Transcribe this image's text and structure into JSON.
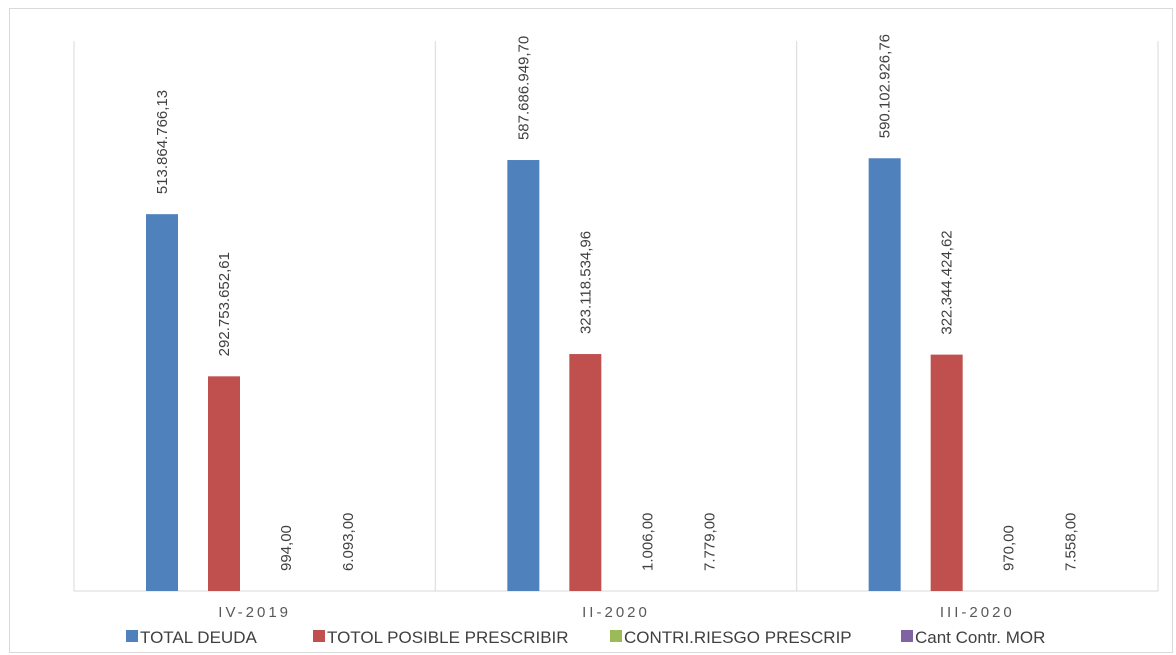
{
  "chart_data": {
    "type": "bar",
    "categories": [
      "IV-2019",
      "II-2020",
      "III-2020"
    ],
    "series": [
      {
        "name": "TOTAL DEUDA",
        "color": "#4f81bd",
        "values": [
          513864766.13,
          587686949.7,
          590102926.76
        ],
        "labels": [
          "513.864.766,13",
          "587.686.949,70",
          "590.102.926,76"
        ]
      },
      {
        "name": "TOTOL POSIBLE PRESCRIBIR",
        "color": "#c0504d",
        "values": [
          292753652.61,
          323118534.96,
          322344424.62
        ],
        "labels": [
          "292.753.652,61",
          "323.118.534,96",
          "322.344.424,62"
        ]
      },
      {
        "name": "CONTRI.RIESGO PRESCRIP",
        "color": "#9bbb59",
        "values": [
          994,
          1006,
          970
        ],
        "labels": [
          "994,00",
          "1.006,00",
          "970,00"
        ]
      },
      {
        "name": "Cant Contr. MOR",
        "color": "#8064a2",
        "values": [
          6093,
          7779,
          7558
        ],
        "labels": [
          "6.093,00",
          "7.779,00",
          "7.558,00"
        ]
      }
    ],
    "ylim": [
      0,
      750000000
    ],
    "grid": "vertical category separators",
    "legend": "bottom"
  }
}
